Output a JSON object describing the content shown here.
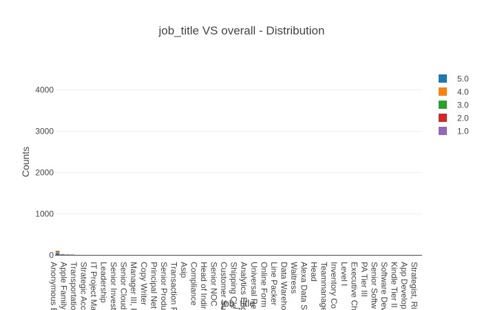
{
  "chart_data": {
    "type": "bar",
    "title": "job_title VS overall - Distribution",
    "xlabel": "job_title",
    "ylabel": "Counts",
    "ylim": [
      0,
      4100
    ],
    "yticks": [
      0,
      1000,
      2000,
      3000,
      4000
    ],
    "ytick_labels": [
      "0",
      "1000",
      "2000",
      "3000",
      "4000"
    ],
    "legend_position": "right",
    "grid": true,
    "visible_x_labels": [
      "Anonymous E",
      "Apple Family",
      "Transportatio",
      "Strategic Acc",
      "IT Project Ma",
      "Leadership",
      "Senior Invest",
      "Senior Cloud",
      "Manager III, P",
      "Copy Writer",
      "Principal Net",
      "Senior Produ",
      "Transaction R",
      "Asip",
      "Compliance",
      "Head of Indir",
      "Senior NOC",
      "Customer Su",
      "Shipping Cle",
      "Analytics Eng",
      "Universal Re",
      "Online Form",
      "Line Packer",
      "Data Wareho",
      "Waitress",
      "Alexa Data S",
      "Head",
      "Teammanage",
      "Inventory Co",
      "Level I",
      "Executive Ch",
      "PA Tier III",
      "Senior Softw",
      "Software Dev",
      "Kindle Tier II",
      "App Develop",
      "Strategist, Ri"
    ],
    "n_categories": 74,
    "series": [
      {
        "name": "5.0",
        "color": "#1f77b4",
        "values": [
          40,
          6,
          3,
          2
        ]
      },
      {
        "name": "4.0",
        "color": "#ff7f0e",
        "values": [
          30,
          5,
          3,
          2
        ]
      },
      {
        "name": "3.0",
        "color": "#2ca02c",
        "values": [
          15,
          3,
          2,
          1
        ]
      },
      {
        "name": "2.0",
        "color": "#d62728",
        "values": [
          8,
          2,
          1,
          1
        ]
      },
      {
        "name": "1.0",
        "color": "#9467bd",
        "values": [
          6,
          2,
          1,
          1
        ]
      }
    ]
  }
}
